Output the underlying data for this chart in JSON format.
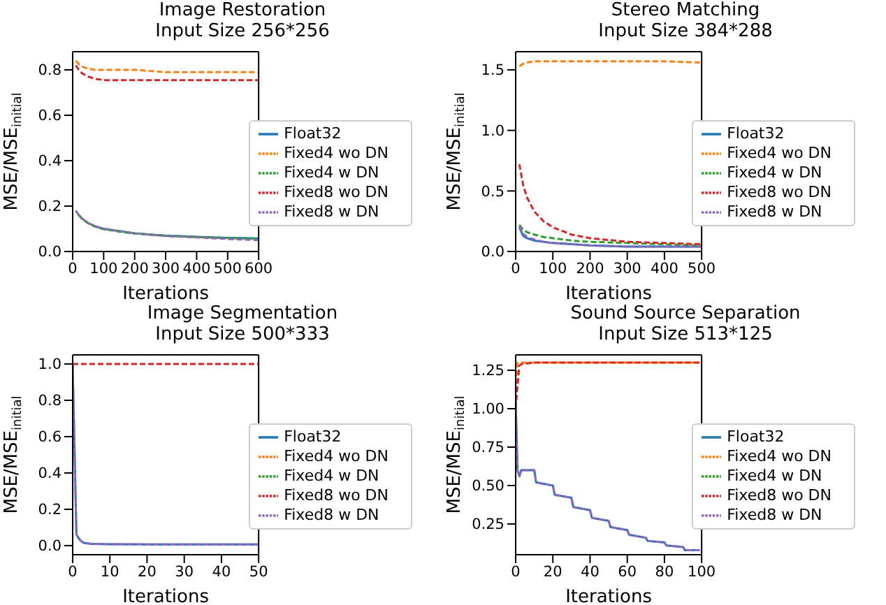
{
  "chart_data": [
    {
      "type": "line",
      "title": "Image Restoration",
      "subtitle": "Input Size 256*256",
      "xlabel": "Iterations",
      "ylabel": "MSE/MSE$_{initial}$",
      "x": [
        10,
        20,
        30,
        50,
        75,
        100,
        150,
        200,
        250,
        300,
        400,
        500,
        600
      ],
      "xlim": [
        0,
        600
      ],
      "xticks": [
        0,
        100,
        200,
        300,
        400,
        500,
        600
      ],
      "ylim": [
        0,
        0.88
      ],
      "yticks": [
        {
          "value": 0,
          "label": "0.0"
        },
        0.2,
        0.4,
        0.6,
        0.8
      ],
      "legend": "right",
      "grid": false,
      "series": [
        {
          "name": "Float32",
          "color": "#1f77b4",
          "line_style": "solid",
          "values": [
            0.18,
            0.16,
            0.145,
            0.125,
            0.11,
            0.1,
            0.09,
            0.08,
            0.075,
            0.07,
            0.065,
            0.06,
            0.058
          ]
        },
        {
          "name": "Fixed4 wo DN",
          "color": "#ff7f0e",
          "line_style": "dashed",
          "values": [
            0.84,
            0.825,
            0.815,
            0.805,
            0.8,
            0.8,
            0.8,
            0.8,
            0.795,
            0.79,
            0.79,
            0.79,
            0.79
          ]
        },
        {
          "name": "Fixed4 w DN",
          "color": "#2ca02c",
          "line_style": "dashed",
          "values": [
            null,
            0.16,
            0.145,
            0.124,
            0.108,
            0.098,
            0.088,
            0.079,
            0.074,
            0.069,
            0.064,
            0.059,
            0.057
          ]
        },
        {
          "name": "Fixed8 wo DN",
          "color": "#d62728",
          "line_style": "dashed",
          "values": [
            0.82,
            0.8,
            0.785,
            0.77,
            0.76,
            0.755,
            0.755,
            0.755,
            0.755,
            0.755,
            0.755,
            0.755,
            0.755
          ]
        },
        {
          "name": "Fixed8 w DN",
          "color": "#9467bd",
          "line_style": "dashed",
          "values": [
            0.18,
            0.16,
            0.145,
            0.125,
            0.11,
            0.1,
            0.09,
            0.08,
            0.074,
            0.068,
            0.062,
            0.055,
            0.05
          ]
        }
      ]
    },
    {
      "type": "line",
      "title": "Stereo Matching",
      "subtitle": "Input Size 384*288",
      "xlabel": "Iterations",
      "ylabel": "MSE/MSE$_{initial}$",
      "x": [
        10,
        20,
        30,
        50,
        75,
        100,
        150,
        200,
        300,
        400,
        500
      ],
      "xlim": [
        0,
        500
      ],
      "xticks": [
        0,
        100,
        200,
        300,
        400,
        500
      ],
      "ylim": [
        0,
        1.65
      ],
      "yticks": [
        {
          "value": 0,
          "label": "0.0"
        },
        0.5,
        {
          "value": 1,
          "label": "1.0"
        },
        1.5
      ],
      "legend": "right",
      "grid": false,
      "series": [
        {
          "name": "Float32",
          "color": "#1f77b4",
          "line_style": "solid",
          "values": [
            0.2,
            0.13,
            0.11,
            0.09,
            0.08,
            0.07,
            0.06,
            0.05,
            0.04,
            0.04,
            0.04
          ]
        },
        {
          "name": "Fixed4 wo DN",
          "color": "#ff7f0e",
          "line_style": "dashed",
          "values": [
            1.53,
            1.55,
            1.56,
            1.57,
            1.57,
            1.57,
            1.57,
            1.57,
            1.57,
            1.57,
            1.56
          ]
        },
        {
          "name": "Fixed4 w DN",
          "color": "#2ca02c",
          "line_style": "dashed",
          "values": [
            0.22,
            0.18,
            0.16,
            0.14,
            0.12,
            0.11,
            0.09,
            0.08,
            0.07,
            0.06,
            0.05
          ]
        },
        {
          "name": "Fixed8 wo DN",
          "color": "#d62728",
          "line_style": "dashed",
          "values": [
            0.72,
            0.55,
            0.45,
            0.33,
            0.25,
            0.2,
            0.14,
            0.11,
            0.08,
            0.07,
            0.06
          ]
        },
        {
          "name": "Fixed8 w DN",
          "color": "#9467bd",
          "line_style": "dashed",
          "values": [
            0.21,
            0.15,
            0.12,
            0.1,
            0.08,
            0.07,
            0.06,
            0.05,
            0.04,
            0.04,
            0.04
          ]
        }
      ]
    },
    {
      "type": "line",
      "title": "Image Segmentation",
      "subtitle": "Input Size 500*333",
      "xlabel": "Iterations",
      "ylabel": "MSE/MSE$_{initial}$",
      "x": [
        0,
        1,
        2,
        3,
        5,
        10,
        20,
        30,
        40,
        50
      ],
      "xlim": [
        0,
        50
      ],
      "xticks": [
        0,
        10,
        20,
        30,
        40,
        50
      ],
      "ylim": [
        -0.05,
        1.05
      ],
      "yticks": [
        {
          "value": 0,
          "label": "0.0"
        },
        0.2,
        0.4,
        0.6,
        0.8,
        {
          "value": 1,
          "label": "1.0"
        }
      ],
      "legend": "right",
      "grid": false,
      "series": [
        {
          "name": "Float32",
          "color": "#1f77b4",
          "line_style": "solid",
          "values": [
            1,
            0.06,
            0.03,
            0.015,
            0.01,
            0.008,
            0.007,
            0.007,
            0.007,
            0.007
          ]
        },
        {
          "name": "Fixed4 wo DN",
          "color": "#ff7f0e",
          "line_style": "dashed",
          "values": [
            null,
            null,
            null,
            null,
            null,
            null,
            null,
            null,
            null,
            null
          ]
        },
        {
          "name": "Fixed4 w DN",
          "color": "#2ca02c",
          "line_style": "dashed",
          "values": [
            null,
            null,
            null,
            null,
            null,
            null,
            null,
            null,
            null,
            null
          ]
        },
        {
          "name": "Fixed8 wo DN",
          "color": "#d62728",
          "line_style": "dashed",
          "values": [
            1,
            1,
            1,
            1,
            1,
            1,
            1,
            1,
            1,
            1
          ]
        },
        {
          "name": "Fixed8 w DN",
          "color": "#9467bd",
          "line_style": "dashed",
          "values": [
            1,
            0.06,
            0.03,
            0.015,
            0.01,
            0.008,
            0.007,
            0.007,
            0.007,
            0.007
          ]
        }
      ]
    },
    {
      "type": "line",
      "title": "Sound Source Separation",
      "subtitle": "Input Size 513*125",
      "xlabel": "Iterations",
      "ylabel": "MSE/MSE$_{initial}$",
      "x": [
        0,
        1,
        2,
        3,
        10,
        11,
        20,
        21,
        30,
        31,
        40,
        41,
        50,
        51,
        60,
        61,
        70,
        71,
        80,
        81,
        90,
        91,
        99
      ],
      "xlim": [
        0,
        100
      ],
      "xticks": [
        0,
        20,
        40,
        60,
        80,
        100
      ],
      "ylim": [
        0.05,
        1.35
      ],
      "yticks": [
        0.25,
        {
          "value": 0.5,
          "label": "0.50"
        },
        0.75,
        {
          "value": 1,
          "label": "1.00"
        },
        1.25
      ],
      "legend": "right",
      "grid": false,
      "series": [
        {
          "name": "Float32",
          "color": "#1f77b4",
          "line_style": "solid",
          "values": [
            1.05,
            0.6,
            0.56,
            0.6,
            0.6,
            0.52,
            0.5,
            0.44,
            0.42,
            0.36,
            0.34,
            0.29,
            0.27,
            0.23,
            0.21,
            0.18,
            0.16,
            0.14,
            0.13,
            0.11,
            0.1,
            0.08,
            0.08
          ]
        },
        {
          "name": "Fixed4 wo DN",
          "color": "#ff7f0e",
          "line_style": "dashed",
          "values": [
            1.05,
            1.3,
            1.3,
            1.3,
            1.3,
            1.3,
            1.3,
            1.3,
            1.3,
            1.3,
            1.3,
            1.3,
            1.3,
            1.3,
            1.3,
            1.3,
            1.3,
            1.3,
            1.3,
            1.3,
            1.3,
            1.3,
            1.3
          ]
        },
        {
          "name": "Fixed4 w DN",
          "color": "#2ca02c",
          "line_style": "dashed",
          "values": [
            null,
            null,
            null,
            null,
            null,
            null,
            null,
            null,
            null,
            null,
            null,
            null,
            null,
            null,
            null,
            null,
            null,
            null,
            null,
            null,
            null,
            null,
            null
          ]
        },
        {
          "name": "Fixed8 wo DN",
          "color": "#d62728",
          "line_style": "dashed",
          "values": [
            1,
            1.15,
            1.28,
            1.29,
            1.3,
            1.3,
            1.3,
            1.3,
            1.3,
            1.3,
            1.3,
            1.3,
            1.3,
            1.3,
            1.3,
            1.3,
            1.3,
            1.3,
            1.3,
            1.3,
            1.3,
            1.3,
            1.3
          ]
        },
        {
          "name": "Fixed8 w DN",
          "color": "#9467bd",
          "line_style": "dashed",
          "values": [
            1.05,
            0.6,
            0.56,
            0.6,
            0.6,
            0.52,
            0.5,
            0.44,
            0.42,
            0.36,
            0.34,
            0.29,
            0.27,
            0.23,
            0.21,
            0.18,
            0.16,
            0.14,
            0.13,
            0.11,
            0.1,
            0.08,
            0.08
          ]
        }
      ]
    }
  ]
}
